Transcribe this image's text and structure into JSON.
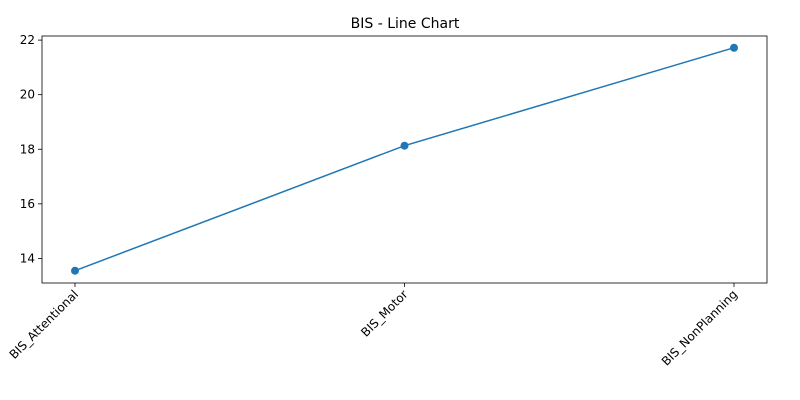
{
  "chart_data": {
    "type": "line",
    "title": "BIS - Line Chart",
    "xlabel": "",
    "ylabel": "",
    "categories": [
      "BIS_Attentional",
      "BIS_Motor",
      "BIS_NonPlanning"
    ],
    "series": [
      {
        "values": [
          13.55,
          18.13,
          21.72
        ],
        "color": "#1f77b4",
        "marker": "circle"
      }
    ],
    "yticks": [
      14,
      16,
      18,
      20,
      22
    ],
    "ylim": [
      13.1,
      22.15
    ],
    "xtick_rotation_deg": 45,
    "grid": false,
    "legend": "none"
  }
}
